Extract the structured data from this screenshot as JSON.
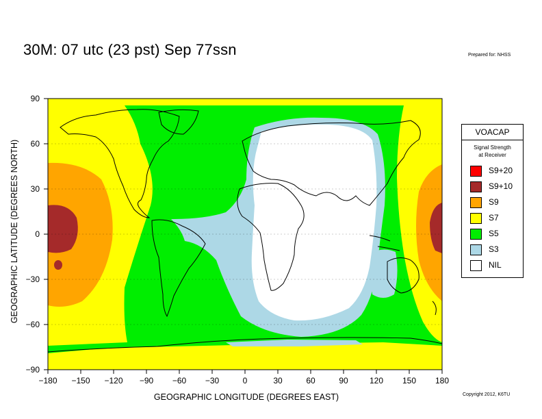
{
  "title": "30M:  07 utc (23 pst) Sep 77ssn",
  "prepared_for": "Prepared for: NHSS",
  "copyright": "Copyright 2012, K6TU",
  "axes": {
    "ylabel": "GEOGRAPHIC LATITUDE (DEGREES NORTH)",
    "xlabel": "GEOGRAPHIC LONGITUDE (DEGREES EAST)",
    "yticks": [
      "90",
      "60",
      "30",
      "0",
      "−30",
      "−60",
      "−90"
    ],
    "xticks": [
      "−180",
      "−150",
      "−120",
      "−90",
      "−60",
      "−30",
      "0",
      "30",
      "60",
      "90",
      "120",
      "150",
      "180"
    ],
    "xrange": [
      -180,
      180
    ],
    "yrange": [
      -90,
      90
    ]
  },
  "legend": {
    "title": "VOACAP",
    "subtitle_line1": "Signal Strength",
    "subtitle_line2": "at Receiver",
    "items": [
      {
        "label": "S9+20",
        "color": "#ff0000"
      },
      {
        "label": "S9+10",
        "color": "#a52a2a"
      },
      {
        "label": "S9",
        "color": "#ffa500"
      },
      {
        "label": "S7",
        "color": "#ffff00"
      },
      {
        "label": "S5",
        "color": "#00ee00"
      },
      {
        "label": "S3",
        "color": "#add8e6"
      },
      {
        "label": "NIL",
        "color": "#ffffff"
      }
    ]
  },
  "map": {
    "projection": "equirectangular",
    "overlays": "coastlines and political borders",
    "background_color": "#00ee00"
  }
}
